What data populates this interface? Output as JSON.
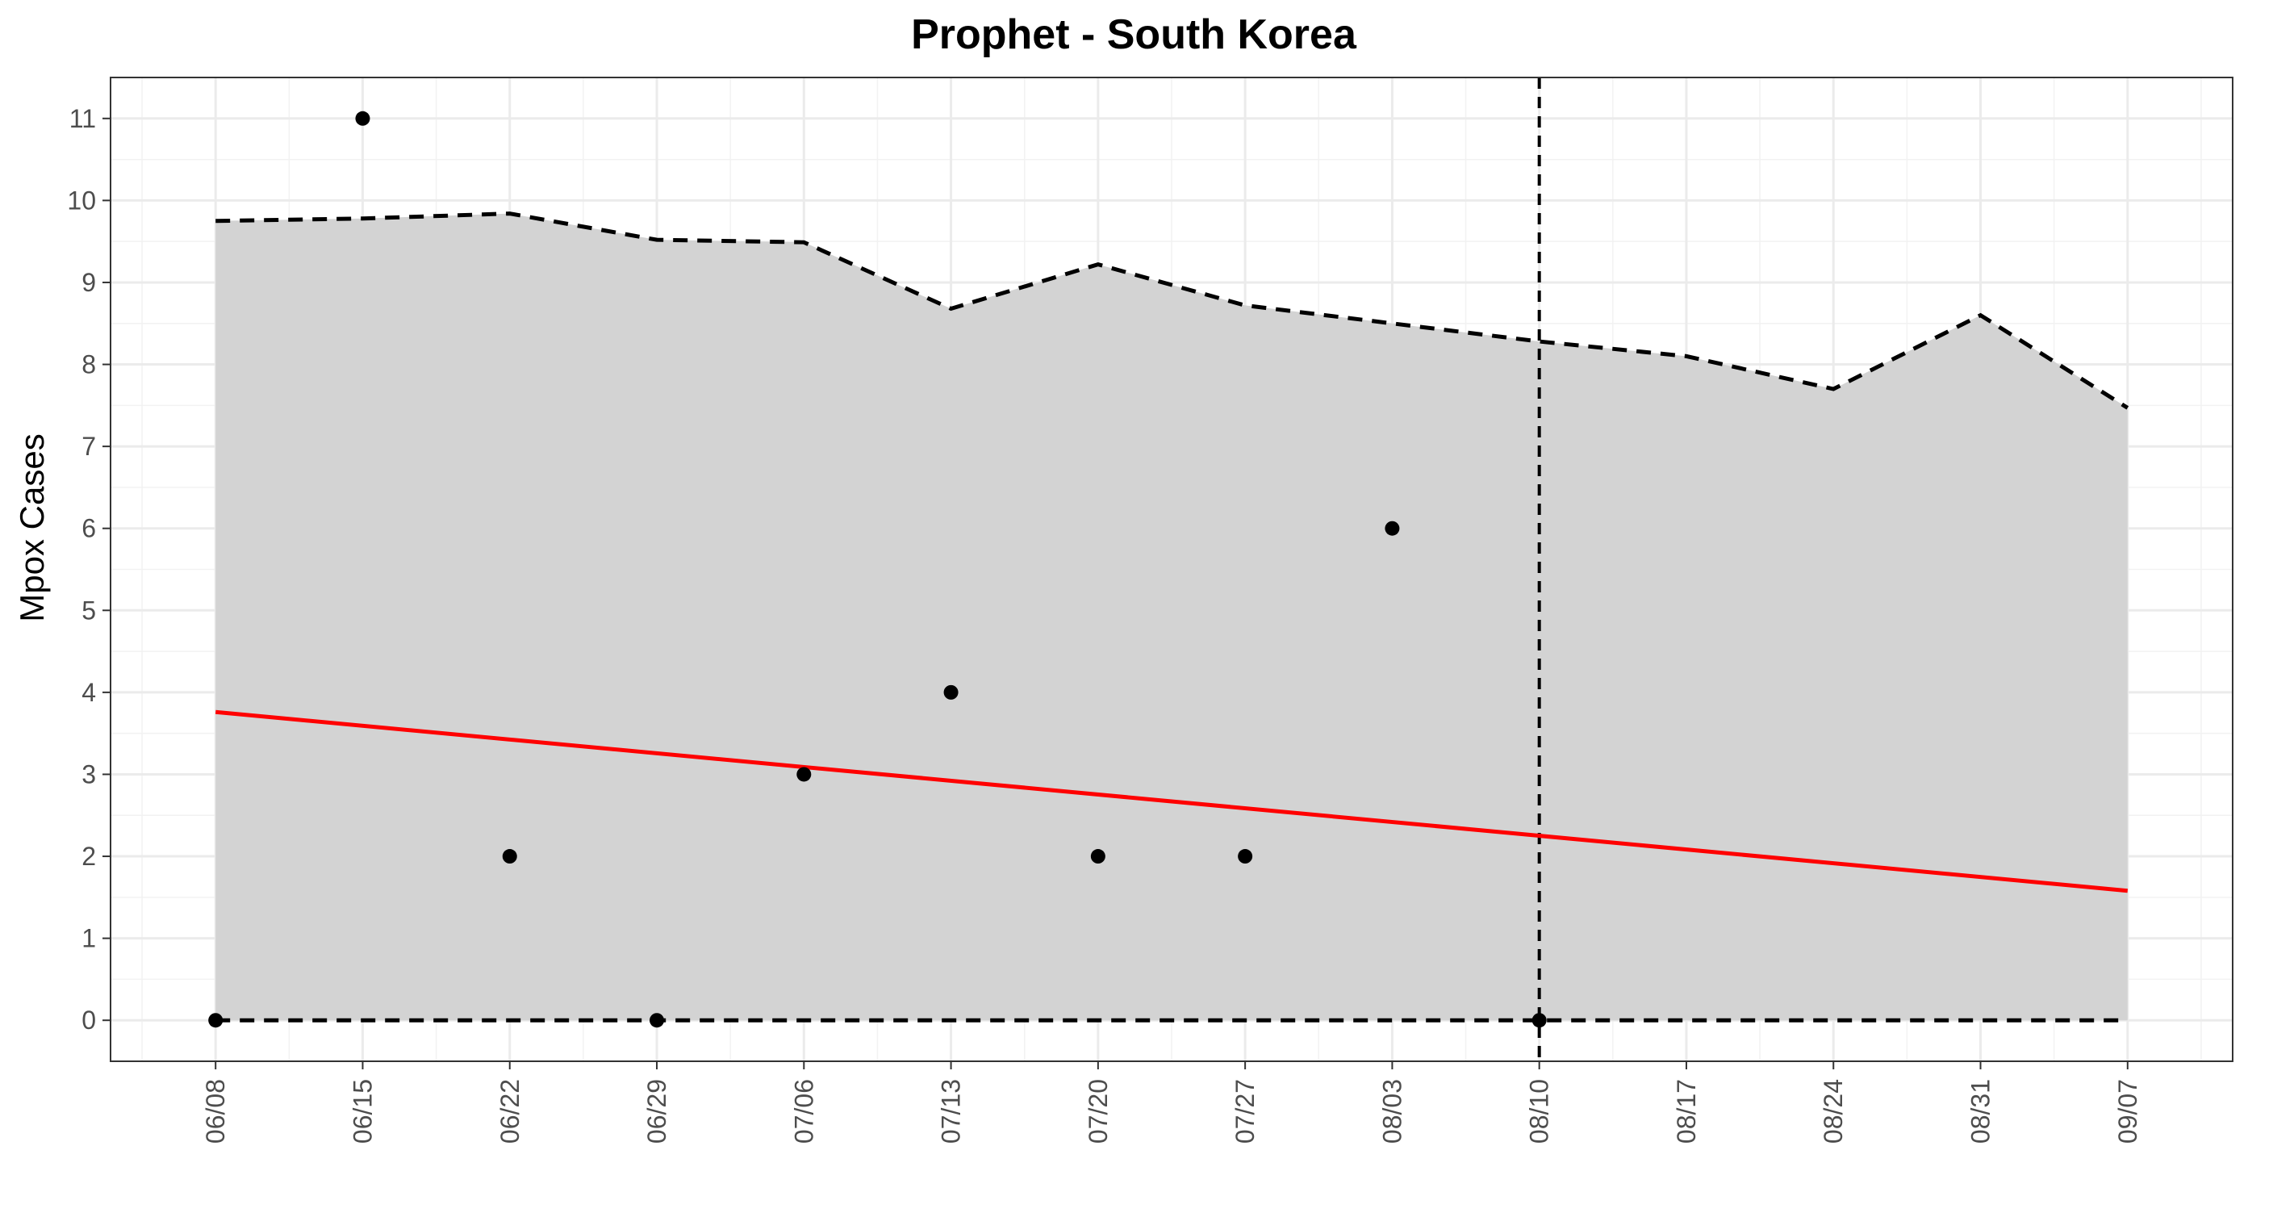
{
  "chart_data": {
    "type": "line",
    "title": "Prophet - South Korea",
    "xlabel": "",
    "ylabel": "Mpox Cases",
    "x_ticks": [
      "06/08",
      "06/15",
      "06/22",
      "06/29",
      "07/06",
      "07/13",
      "07/20",
      "07/27",
      "08/03",
      "08/10",
      "08/17",
      "08/24",
      "08/31",
      "09/07"
    ],
    "y_ticks": [
      0,
      1,
      2,
      3,
      4,
      5,
      6,
      7,
      8,
      9,
      10,
      11
    ],
    "ylim": [
      -0.5,
      11.5
    ],
    "xlim": [
      "06/03",
      "09/12"
    ],
    "grid": true,
    "series": [
      {
        "role": "observed",
        "mark": "points",
        "color": "#000000",
        "x": [
          "06/08",
          "06/15",
          "06/22",
          "06/29",
          "07/06",
          "07/13",
          "07/20",
          "07/27",
          "08/03",
          "08/10"
        ],
        "y": [
          0,
          11,
          2,
          0,
          3,
          4,
          2,
          2,
          6,
          0
        ]
      },
      {
        "role": "forecast",
        "mark": "line",
        "color": "#ff0000",
        "x": [
          "06/08",
          "09/07"
        ],
        "y": [
          3.76,
          1.58
        ]
      },
      {
        "role": "upper-bound",
        "mark": "dashed-line",
        "color": "#000000",
        "x": [
          "06/08",
          "06/15",
          "06/22",
          "06/29",
          "07/06",
          "07/13",
          "07/20",
          "07/27",
          "08/03",
          "08/10",
          "08/17",
          "08/24",
          "08/31",
          "09/07"
        ],
        "y": [
          9.75,
          9.78,
          9.84,
          9.52,
          9.49,
          8.68,
          9.22,
          8.72,
          8.5,
          8.28,
          8.1,
          7.7,
          8.6,
          7.47
        ]
      },
      {
        "role": "lower-bound",
        "mark": "dashed-line",
        "color": "#000000",
        "x": [
          "06/08",
          "06/15",
          "06/22",
          "06/29",
          "07/06",
          "07/13",
          "07/20",
          "07/27",
          "08/03",
          "08/10",
          "08/17",
          "08/24",
          "08/31",
          "09/07"
        ],
        "y": [
          0,
          0,
          0,
          0,
          0,
          0,
          0,
          0,
          0,
          0,
          0,
          0,
          0,
          0
        ]
      }
    ],
    "interval_fill_color": "#d3d3d3",
    "vertical_line": {
      "x": "08/10",
      "style": "dashed",
      "color": "#000000"
    }
  }
}
